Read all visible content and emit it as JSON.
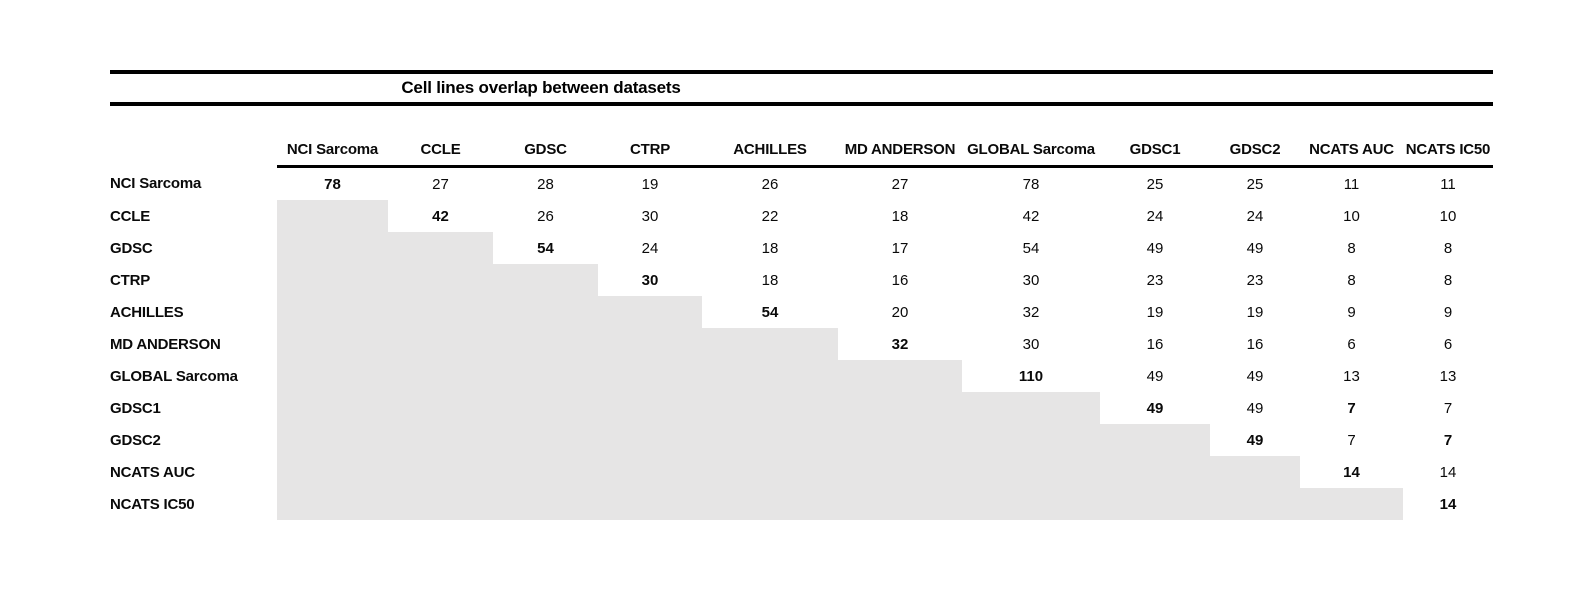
{
  "title": "Cell lines overlap between datasets",
  "colors": {
    "background": "#ffffff",
    "rule": "#000000",
    "text": "#0a0a0a",
    "shaded_cell": "#e6e5e5"
  },
  "matrix": {
    "columns": [
      "NCI Sarcoma",
      "CCLE",
      "GDSC",
      "CTRP",
      "ACHILLES",
      "MD ANDERSON",
      "GLOBAL Sarcoma",
      "GDSC1",
      "GDSC2",
      "NCATS AUC",
      "NCATS IC50"
    ],
    "rows": [
      {
        "label": "NCI Sarcoma",
        "cells": [
          {
            "v": 78,
            "b": true
          },
          {
            "v": 27
          },
          {
            "v": 28
          },
          {
            "v": 19
          },
          {
            "v": 26
          },
          {
            "v": 27
          },
          {
            "v": 78
          },
          {
            "v": 25
          },
          {
            "v": 25
          },
          {
            "v": 11
          },
          {
            "v": 11
          }
        ]
      },
      {
        "label": "CCLE",
        "cells": [
          null,
          {
            "v": 42,
            "b": true
          },
          {
            "v": 26
          },
          {
            "v": 30
          },
          {
            "v": 22
          },
          {
            "v": 18
          },
          {
            "v": 42
          },
          {
            "v": 24
          },
          {
            "v": 24
          },
          {
            "v": 10
          },
          {
            "v": 10
          }
        ]
      },
      {
        "label": "GDSC",
        "cells": [
          null,
          null,
          {
            "v": 54,
            "b": true
          },
          {
            "v": 24
          },
          {
            "v": 18
          },
          {
            "v": 17
          },
          {
            "v": 54
          },
          {
            "v": 49
          },
          {
            "v": 49
          },
          {
            "v": 8
          },
          {
            "v": 8
          }
        ]
      },
      {
        "label": "CTRP",
        "cells": [
          null,
          null,
          null,
          {
            "v": 30,
            "b": true
          },
          {
            "v": 18
          },
          {
            "v": 16
          },
          {
            "v": 30
          },
          {
            "v": 23
          },
          {
            "v": 23
          },
          {
            "v": 8
          },
          {
            "v": 8
          }
        ]
      },
      {
        "label": "ACHILLES",
        "cells": [
          null,
          null,
          null,
          null,
          {
            "v": 54,
            "b": true
          },
          {
            "v": 20
          },
          {
            "v": 32
          },
          {
            "v": 19
          },
          {
            "v": 19
          },
          {
            "v": 9
          },
          {
            "v": 9
          }
        ]
      },
      {
        "label": "MD ANDERSON",
        "cells": [
          null,
          null,
          null,
          null,
          null,
          {
            "v": 32,
            "b": true
          },
          {
            "v": 30
          },
          {
            "v": 16
          },
          {
            "v": 16
          },
          {
            "v": 6
          },
          {
            "v": 6
          }
        ]
      },
      {
        "label": "GLOBAL Sarcoma",
        "cells": [
          null,
          null,
          null,
          null,
          null,
          null,
          {
            "v": 110,
            "b": true
          },
          {
            "v": 49
          },
          {
            "v": 49
          },
          {
            "v": 13
          },
          {
            "v": 13
          }
        ]
      },
      {
        "label": "GDSC1",
        "cells": [
          null,
          null,
          null,
          null,
          null,
          null,
          null,
          {
            "v": 49,
            "b": true
          },
          {
            "v": 49
          },
          {
            "v": 7,
            "b": true
          },
          {
            "v": 7
          }
        ]
      },
      {
        "label": "GDSC2",
        "cells": [
          null,
          null,
          null,
          null,
          null,
          null,
          null,
          null,
          {
            "v": 49,
            "b": true
          },
          {
            "v": 7
          },
          {
            "v": 7,
            "b": true
          }
        ]
      },
      {
        "label": "NCATS AUC",
        "cells": [
          null,
          null,
          null,
          null,
          null,
          null,
          null,
          null,
          null,
          {
            "v": 14,
            "b": true
          },
          {
            "v": 14
          }
        ]
      },
      {
        "label": "NCATS IC50",
        "cells": [
          null,
          null,
          null,
          null,
          null,
          null,
          null,
          null,
          null,
          null,
          {
            "v": 14,
            "b": true
          }
        ]
      }
    ]
  }
}
